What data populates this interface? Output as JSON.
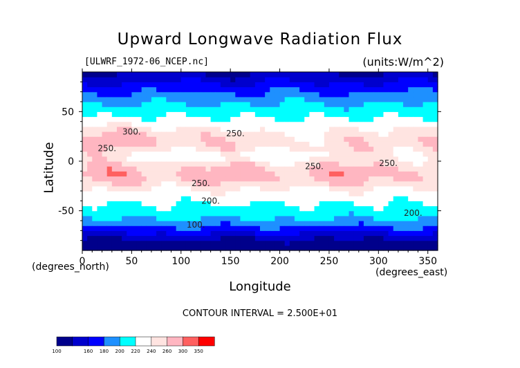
{
  "title": "Upward Longwave Radiation Flux",
  "file_label": "[ULWRF_1972-06_NCEP.nc]",
  "units_label": "(units:W/m^2)",
  "contour_interval": "CONTOUR INTERVAL = 2.500E+01",
  "chart_data": {
    "type": "heatmap",
    "title": "Upward Longwave Radiation Flux",
    "xlabel": "Longitude",
    "ylabel": "Latitude",
    "x_unit_label": "(degrees_east)",
    "y_unit_label": "(degrees_north)",
    "xlim": [
      0,
      360
    ],
    "ylim": [
      -90,
      90
    ],
    "xticks": [
      0,
      50,
      100,
      150,
      200,
      250,
      300,
      350
    ],
    "yticks": [
      -50,
      0,
      50
    ],
    "contour_labels": [
      "300.",
      "250.",
      "250.",
      "250.",
      "250.",
      "250.",
      "200.",
      "200.",
      "100."
    ],
    "colorbar": {
      "ticks": [
        100,
        160,
        180,
        200,
        220,
        240,
        260,
        300,
        350
      ],
      "colors": [
        "#00008b",
        "#0000cd",
        "#0000ff",
        "#1e90ff",
        "#00ffff",
        "#ffffff",
        "#ffe4e1",
        "#ffb6c1",
        "#ff6060",
        "#ff0000"
      ]
    }
  }
}
